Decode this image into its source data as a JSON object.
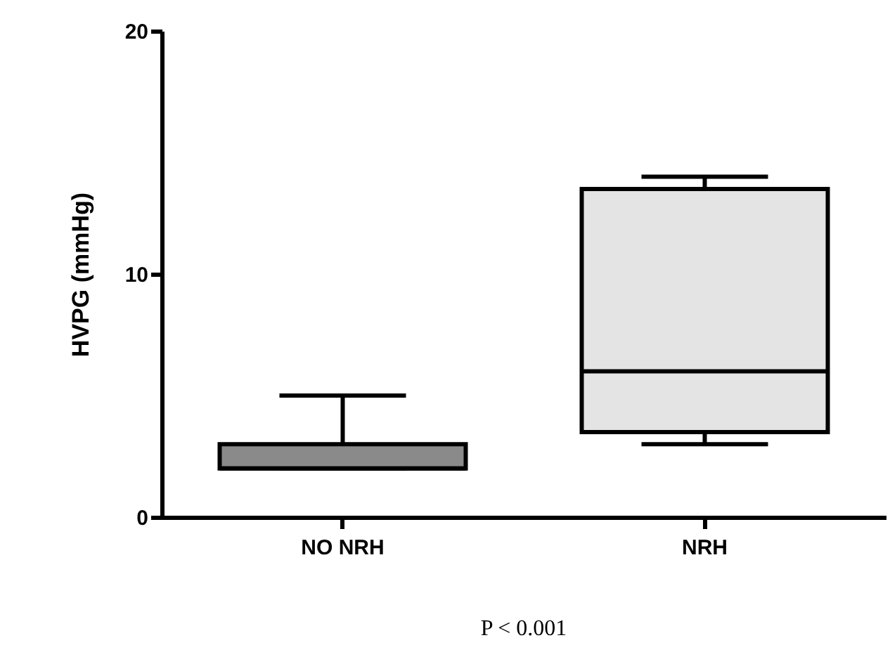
{
  "chart_data": {
    "type": "box",
    "ylabel": "HVPG (mmHg)",
    "categories": [
      "NO NRH",
      "NRH"
    ],
    "boxes": [
      {
        "low": 2,
        "q1": 2,
        "median": 2,
        "q3": 3,
        "high": 5
      },
      {
        "low": 3,
        "q1": 3.5,
        "median": 6,
        "q3": 13.5,
        "high": 14
      }
    ],
    "colors": [
      "#8a8a8a",
      "#e4e4e4"
    ],
    "ylim": [
      0,
      20
    ],
    "yticks": [
      0,
      10,
      20
    ],
    "grid": false,
    "annotations": [
      "P < 0.001"
    ]
  }
}
